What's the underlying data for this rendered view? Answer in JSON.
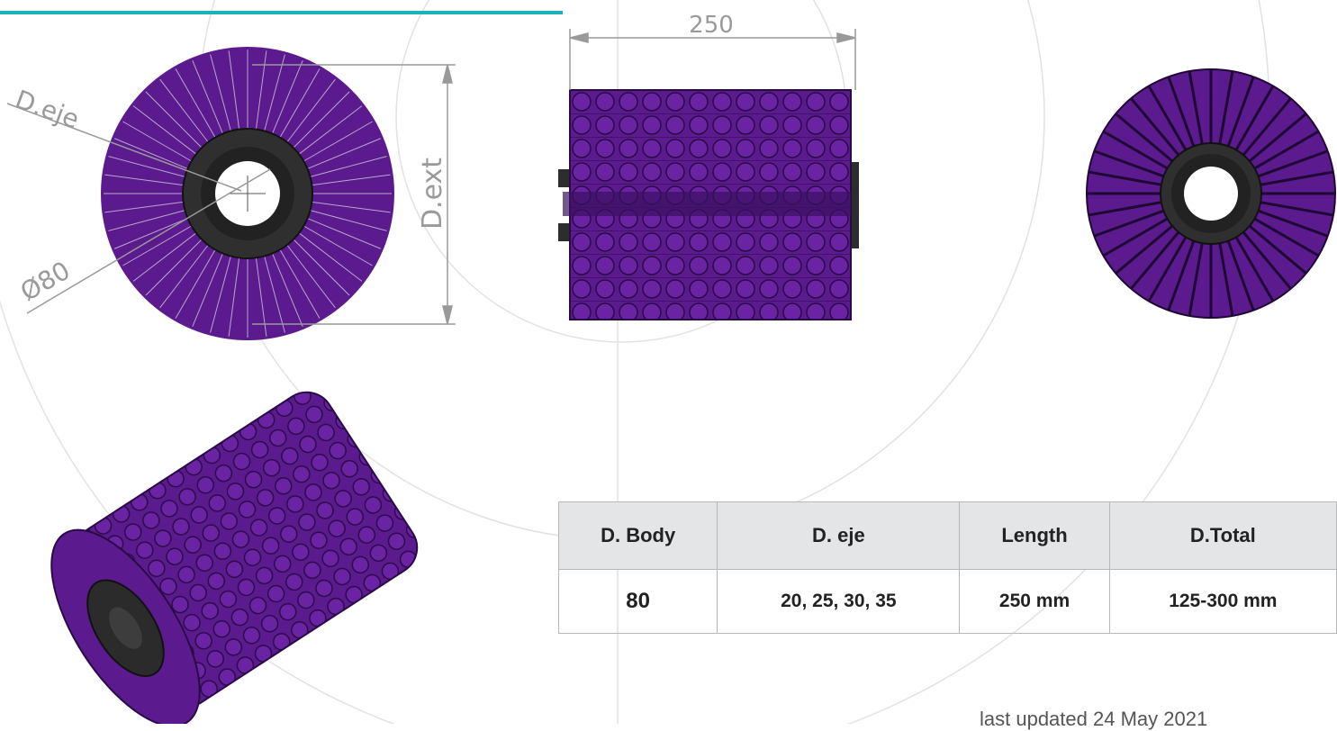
{
  "drawings": {
    "length_dim": "250",
    "shaft_label": "D.eje",
    "body_label": "Ø80",
    "outer_label": "D.ext"
  },
  "table": {
    "headers": [
      "D. Body",
      "D. eje",
      "Length",
      "D.Total"
    ],
    "rows": [
      [
        "80",
        "20, 25, 30, 35",
        "250 mm",
        "125-300 mm"
      ]
    ]
  },
  "footer": "last updated 24 May 2021"
}
